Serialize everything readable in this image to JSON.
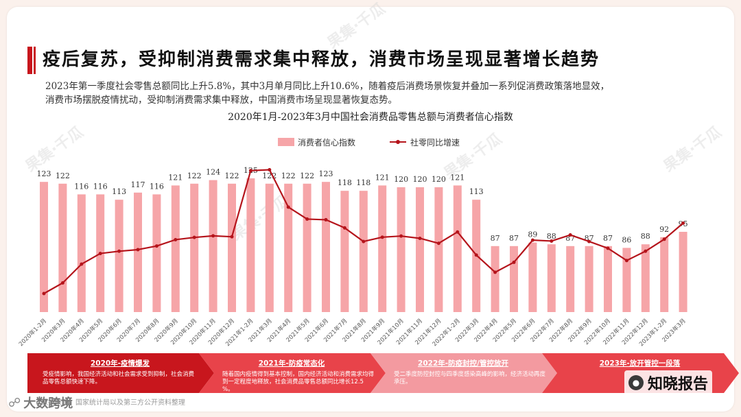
{
  "page": {
    "title": "疫后复苏，受抑制消费需求集中释放，消费市场呈现显著增长趋势",
    "summary_line1": "2023年第一季度社会零售总额同比上升5.8%，其中3月单月同比上升10.6%，随着疫后消费场景恢复并叠加一系列促消费政策落地显效，",
    "summary_line2": "消费市场摆脱疫情扰动，受抑制消费需求集中释放，中国消费市场呈现显著恢复态势。",
    "source": "数据来源：国家统计局以及第三方公开资料整理",
    "watermark": "果集·千瓜",
    "logo_right": "知晓报告",
    "logo_left": "大数跨境"
  },
  "colors": {
    "bar": "#f6a5a8",
    "line": "#b5141b",
    "accent": "#c8161d",
    "phase1": "#c8161d",
    "phase2": "#e8434a",
    "phase3": "#f39aa0",
    "phase4": "#e8434a"
  },
  "chart_data": {
    "type": "bar",
    "title": "2020年1月-2023年3月中国社会消费品零售总额与消费者信心指数",
    "categories": [
      "2020年1-2月",
      "2020年3月",
      "2020年4月",
      "2020年5月",
      "2020年6月",
      "2020年7月",
      "2020年8月",
      "2020年9月",
      "2020年10月",
      "2020年11月",
      "2020年12月",
      "2021年1-2月",
      "2021年3月",
      "2021年4月",
      "2021年5月",
      "2021年6月",
      "2021年7月",
      "2021年8月",
      "2021年9月",
      "2021年10月",
      "2021年11月",
      "2021年12月",
      "2022年1-2月",
      "2022年3月",
      "2022年4月",
      "2022年5月",
      "2022年6月",
      "2022年7月",
      "2022年8月",
      "2022年9月",
      "2022年10月",
      "2022年11月",
      "2022年12月",
      "2023年1-2月",
      "2023年3月"
    ],
    "series": [
      {
        "name": "消费者信心指数",
        "type": "bar",
        "values": [
          123,
          122,
          116,
          116,
          113,
          117,
          116,
          121,
          122,
          124,
          122,
          125,
          122,
          122,
          122,
          123,
          118,
          118,
          121,
          120,
          120,
          120,
          121,
          113,
          87,
          87,
          89,
          88,
          87,
          87,
          87,
          86,
          88,
          92,
          95
        ]
      },
      {
        "name": "社零同比增速",
        "type": "line",
        "values": [
          -20.5,
          -15.8,
          -7.5,
          -2.8,
          -1.8,
          -1.1,
          0.5,
          3.3,
          4.3,
          5.0,
          4.6,
          33.8,
          34.2,
          17.7,
          12.4,
          12.1,
          8.5,
          2.5,
          4.4,
          4.9,
          3.9,
          1.7,
          6.7,
          -3.5,
          -11.1,
          -6.7,
          3.1,
          2.7,
          5.4,
          2.5,
          -0.5,
          -5.9,
          -1.8,
          3.5,
          10.6
        ]
      }
    ],
    "bar_labels_shown": true,
    "line_labels_shown": false,
    "legend_position": "top"
  },
  "phases": [
    {
      "title": "2020年-疫情爆发",
      "text": "受疫情影响，我国经济活动和社会需求受到抑制，社会消费品零售总额快速下降。"
    },
    {
      "title": "2021年-防疫常态化",
      "text": "随着国内疫情得到基本控制，国内经济活动和消费需求均得到一定程度地释放，社会消费品零售总额同比增长12.5%。"
    },
    {
      "title": "2022年-防疫封控/管控放开",
      "text": "受二季度防控封控与四季度感染高峰的影响，经济活动再度承压。"
    },
    {
      "title": "2023年-放开管控一段落",
      "text": ""
    }
  ]
}
